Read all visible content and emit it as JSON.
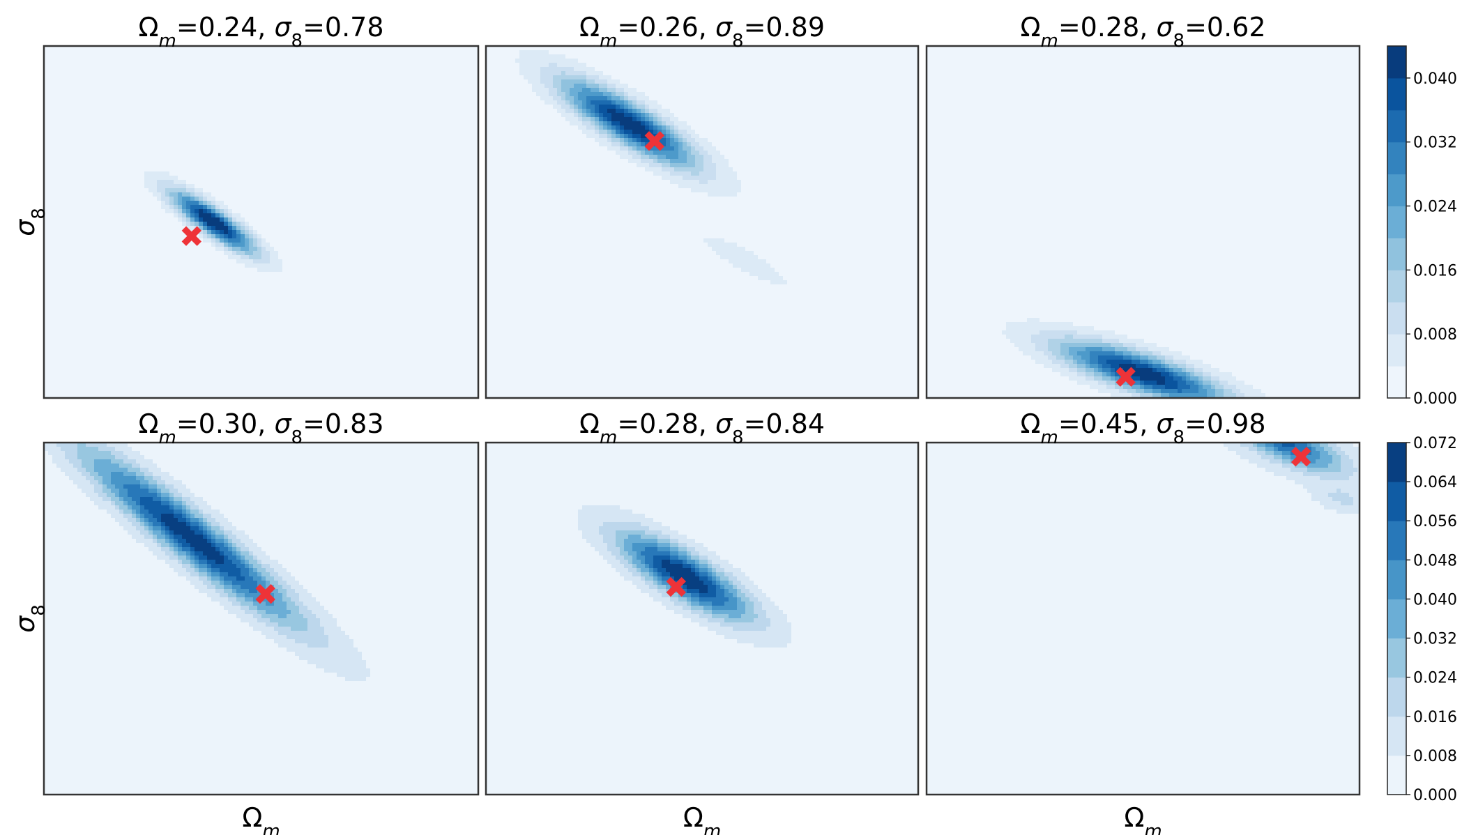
{
  "chart_data": {
    "type": "heatmap",
    "panels": [
      {
        "title": "Ω_m=0.24, σ_8=0.78",
        "title_prefix": "Ω",
        "title_sub1": "m",
        "title_mid": "=0.24, σ",
        "title_sub2": "8",
        "title_suffix": "=0.78",
        "truth_marker": {
          "x": 0.34,
          "y": 0.54
        },
        "blobs": [
          {
            "x": 0.39,
            "y": 0.5,
            "sx": 0.085,
            "sy": 0.022,
            "angle": 42,
            "amp": 0.044
          }
        ],
        "background": 0.002,
        "ylabel": "σ8",
        "xlabel": ""
      },
      {
        "title": "Ω_m=0.26, σ_8=0.89",
        "title_prefix": "Ω",
        "title_sub1": "m",
        "title_mid": "=0.26, σ",
        "title_sub2": "8",
        "title_suffix": "=0.89",
        "truth_marker": {
          "x": 0.39,
          "y": 0.27
        },
        "blobs": [
          {
            "x": 0.33,
            "y": 0.22,
            "sx": 0.13,
            "sy": 0.035,
            "angle": 38,
            "amp": 0.042
          },
          {
            "x": 0.6,
            "y": 0.61,
            "sx": 0.075,
            "sy": 0.018,
            "angle": 35,
            "amp": 0.006
          }
        ],
        "background": 0.002,
        "ylabel": "",
        "xlabel": ""
      },
      {
        "title": "Ω_m=0.28, σ_8=0.62",
        "title_prefix": "Ω",
        "title_sub1": "m",
        "title_mid": "=0.28, σ",
        "title_sub2": "8",
        "title_suffix": "=0.62",
        "truth_marker": {
          "x": 0.46,
          "y": 0.94
        },
        "blobs": [
          {
            "x": 0.5,
            "y": 0.93,
            "sx": 0.14,
            "sy": 0.035,
            "angle": 22,
            "amp": 0.042
          }
        ],
        "background": 0.002,
        "ylabel": "",
        "xlabel": ""
      },
      {
        "title": "Ω_m=0.30, σ_8=0.83",
        "title_prefix": "Ω",
        "title_sub1": "m",
        "title_mid": "=0.30, σ",
        "title_sub2": "8",
        "title_suffix": "=0.83",
        "truth_marker": {
          "x": 0.51,
          "y": 0.43
        },
        "blobs": [
          {
            "x": 0.34,
            "y": 0.27,
            "sx": 0.24,
            "sy": 0.04,
            "angle": 45,
            "amp": 0.066
          }
        ],
        "background": 0.004,
        "ylabel": "σ8",
        "xlabel": "Ω_m"
      },
      {
        "title": "Ω_m=0.28, σ_8=0.84",
        "title_prefix": "Ω",
        "title_sub1": "m",
        "title_mid": "=0.28, σ",
        "title_sub2": "8",
        "title_suffix": "=0.84",
        "truth_marker": {
          "x": 0.44,
          "y": 0.41
        },
        "blobs": [
          {
            "x": 0.46,
            "y": 0.38,
            "sx": 0.13,
            "sy": 0.04,
            "angle": 38,
            "amp": 0.068
          }
        ],
        "background": 0.004,
        "ylabel": "",
        "xlabel": "Ω_m"
      },
      {
        "title": "Ω_m=0.45, σ_8=0.98",
        "title_prefix": "Ω",
        "title_sub1": "m",
        "title_mid": "=0.45, σ",
        "title_sub2": "8",
        "title_suffix": "=0.98",
        "truth_marker": {
          "x": 0.865,
          "y": 0.04
        },
        "blobs": [
          {
            "x": 0.83,
            "y": 0.0,
            "sx": 0.1,
            "sy": 0.035,
            "angle": 30,
            "amp": 0.052
          },
          {
            "x": 0.96,
            "y": 0.16,
            "sx": 0.04,
            "sy": 0.02,
            "angle": 20,
            "amp": 0.012
          }
        ],
        "background": 0.006,
        "ylabel": "",
        "xlabel": "Ω_m"
      }
    ],
    "colorbars": [
      {
        "row": 0,
        "levels": [
          0.0,
          0.004,
          0.008,
          0.012,
          0.016,
          0.02,
          0.024,
          0.028,
          0.032,
          0.036,
          0.04,
          0.044
        ],
        "tick_values": [
          0.0,
          0.008,
          0.016,
          0.024,
          0.032,
          0.04
        ],
        "tick_labels": [
          "0.000",
          "0.008",
          "0.016",
          "0.024",
          "0.032",
          "0.040"
        ]
      },
      {
        "row": 1,
        "levels": [
          0.0,
          0.008,
          0.016,
          0.024,
          0.032,
          0.04,
          0.048,
          0.056,
          0.064,
          0.072
        ],
        "tick_values": [
          0.0,
          0.008,
          0.016,
          0.024,
          0.032,
          0.04,
          0.048,
          0.056,
          0.064,
          0.072
        ],
        "tick_labels": [
          "0.000",
          "0.008",
          "0.016",
          "0.024",
          "0.032",
          "0.040",
          "0.048",
          "0.056",
          "0.064",
          "0.072"
        ]
      }
    ],
    "colormap": [
      "#f7fbff",
      "#deebf7",
      "#c6dbef",
      "#9ecae1",
      "#6baed6",
      "#4292c6",
      "#2171b5",
      "#08519c",
      "#08306b"
    ],
    "marker_color": "#ee3338",
    "axis_labels": {
      "x": "Ω",
      "x_sub": "m",
      "y": "σ",
      "y_sub": "8"
    }
  }
}
